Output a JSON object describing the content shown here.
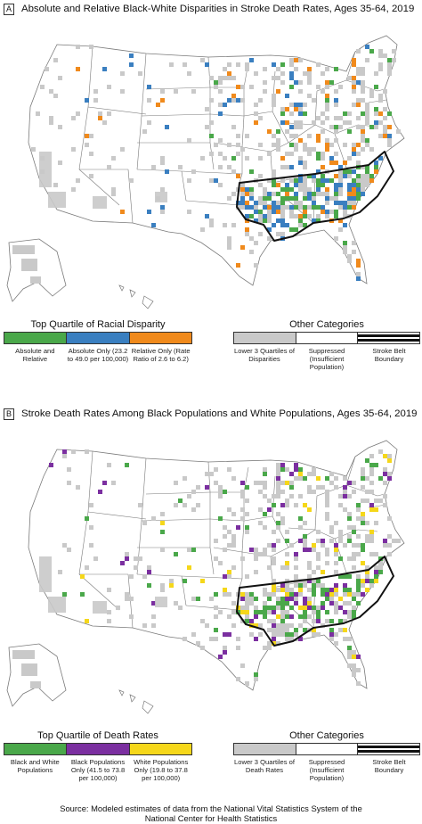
{
  "colors": {
    "green": "#4aa84a",
    "blue": "#3a7fc0",
    "orange": "#f08a1c",
    "purple": "#7b2fa0",
    "yellow": "#f5d71a",
    "gray": "#c9c9c9",
    "state_line": "#7a7a7a",
    "belt_line": "#111111"
  },
  "panel_a": {
    "letter": "A",
    "title": "Absolute and Relative Black-White Disparities in Stroke Death Rates, Ages 35-64, 2019",
    "legend_left": {
      "title": "Top Quartile of Racial Disparity",
      "items": [
        {
          "label": "Absolute and Relative",
          "color": "green"
        },
        {
          "label": "Absolute Only (23.2 to 49.0 per 100,000)",
          "color": "blue"
        },
        {
          "label": "Relative Only (Rate Ratio of 2.6 to 6.2)",
          "color": "orange"
        }
      ]
    },
    "legend_right": {
      "title": "Other Categories",
      "items": [
        {
          "label": "Lower 3 Quartiles of Disparities",
          "style": "gray"
        },
        {
          "label": "Suppressed (Insufficient Population)",
          "style": "white"
        },
        {
          "label": "Stroke Belt Boundary",
          "style": "belt"
        }
      ]
    }
  },
  "panel_b": {
    "letter": "B",
    "title": "Stroke Death Rates Among Black Populations and White Populations, Ages 35-64, 2019",
    "legend_left": {
      "title": "Top Quartile of Death Rates",
      "items": [
        {
          "label": "Black and White Populations",
          "color": "green"
        },
        {
          "label": "Black Populations Only (41.5 to 73.8 per 100,000)",
          "color": "purple"
        },
        {
          "label": "White Populations Only (19.8 to 37.8 per 100,000)",
          "color": "yellow"
        }
      ]
    },
    "legend_right": {
      "title": "Other Categories",
      "items": [
        {
          "label": "Lower 3 Quartiles of Death Rates",
          "style": "gray"
        },
        {
          "label": "Suppressed (Insufficient Population)",
          "style": "white"
        },
        {
          "label": "Stroke Belt Boundary",
          "style": "belt"
        }
      ]
    }
  },
  "source": {
    "line1": "Source: Modeled estimates of data from the National Vital Statistics System of the",
    "line2": "National Center for Health Statistics"
  }
}
